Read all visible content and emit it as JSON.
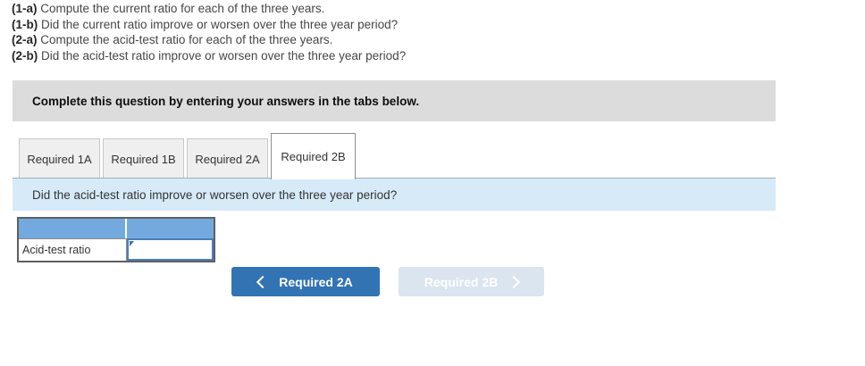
{
  "instructions": [
    {
      "prefix": "(1-a)",
      "text": " Compute the current ratio for each of the three years."
    },
    {
      "prefix": "(1-b)",
      "text": " Did the current ratio improve or worsen over the three year period?"
    },
    {
      "prefix": "(2-a)",
      "text": " Compute the acid-test ratio for each of the three years."
    },
    {
      "prefix": "(2-b)",
      "text": " Did the acid-test ratio improve or worsen over the three year period?"
    }
  ],
  "banner": {
    "text": "Complete this question by entering your answers in the tabs below."
  },
  "tabs": {
    "items": [
      {
        "label": "Required 1A",
        "active": false
      },
      {
        "label": "Required 1B",
        "active": false
      },
      {
        "label": "Required 2A",
        "active": false
      },
      {
        "label": "Required 2B",
        "active": true
      }
    ],
    "active_tab": "Required 2B"
  },
  "panel": {
    "question": "Did the acid-test ratio improve or worsen over the three year period?"
  },
  "answer_table": {
    "header": [
      "",
      ""
    ],
    "rows": [
      {
        "label": "Acid-test ratio",
        "value": "",
        "placeholder": ""
      }
    ]
  },
  "nav": {
    "prev": {
      "label": "Required 2A",
      "icon": "chevron-left-icon",
      "enabled": true
    },
    "next": {
      "label": "Required 2B",
      "icon": "chevron-right-icon",
      "enabled": false
    }
  },
  "icons": {
    "answer_cell_marker": "triangle-marker-icon"
  },
  "colors": {
    "banner_bg": "#dcdcdc",
    "tab_bg": "#efefef",
    "tab_active_bg": "#ffffff",
    "question_bar_bg": "#d7eaf8",
    "table_header_bg": "#73a9de",
    "input_border": "#4a7ebb",
    "button_primary_bg": "#3273b4",
    "button_disabled_bg": "#dbe5f0",
    "text_dark": "#333333"
  }
}
